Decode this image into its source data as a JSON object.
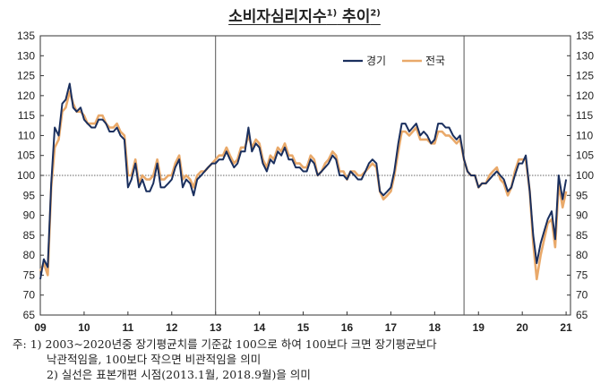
{
  "title": {
    "text": "소비자심리지수",
    "sup1": "1)",
    "text2": " 추이",
    "sup2": "2)"
  },
  "notes": {
    "label": "주:",
    "line1": "1) 2003~2020년중 장기평균치를 기준값 100으로 하여 100보다 크면 장기평균보다",
    "line2": "낙관적임을, 100보다 작으면 비관적임을 의미",
    "line3": "2) 실선은 표본개편 시점(2013.1월, 2018.9월)을 의미"
  },
  "colors": {
    "경기": "#1a2f5e",
    "전국": "#e9a96a",
    "vline": "#555555"
  },
  "chart_data": {
    "type": "line",
    "xlabel": "",
    "ylabel": "",
    "ylim": [
      65,
      135
    ],
    "yticks": [
      65,
      70,
      75,
      80,
      85,
      90,
      95,
      100,
      105,
      110,
      115,
      120,
      125,
      130,
      135
    ],
    "x_tick_labels": [
      "09",
      "10",
      "11",
      "12",
      "13",
      "14",
      "15",
      "16",
      "17",
      "18",
      "19",
      "20",
      "21"
    ],
    "x_range": [
      2009,
      2021.1
    ],
    "reference_line": 100,
    "vertical_lines": [
      2013,
      2018.67
    ],
    "legend": "top-right",
    "series": [
      {
        "name": "경기",
        "x": [
          2009.0,
          2009.08,
          2009.17,
          2009.25,
          2009.33,
          2009.42,
          2009.5,
          2009.58,
          2009.67,
          2009.75,
          2009.83,
          2009.92,
          2010.0,
          2010.08,
          2010.17,
          2010.25,
          2010.33,
          2010.42,
          2010.5,
          2010.58,
          2010.67,
          2010.75,
          2010.83,
          2010.92,
          2011.0,
          2011.08,
          2011.17,
          2011.25,
          2011.33,
          2011.42,
          2011.5,
          2011.58,
          2011.67,
          2011.75,
          2011.83,
          2011.92,
          2012.0,
          2012.08,
          2012.17,
          2012.25,
          2012.33,
          2012.42,
          2012.5,
          2012.58,
          2012.67,
          2012.75,
          2012.83,
          2012.92,
          2013.0,
          2013.08,
          2013.17,
          2013.25,
          2013.33,
          2013.42,
          2013.5,
          2013.58,
          2013.67,
          2013.75,
          2013.83,
          2013.92,
          2014.0,
          2014.08,
          2014.17,
          2014.25,
          2014.33,
          2014.42,
          2014.5,
          2014.58,
          2014.67,
          2014.75,
          2014.83,
          2014.92,
          2015.0,
          2015.08,
          2015.17,
          2015.25,
          2015.33,
          2015.42,
          2015.5,
          2015.58,
          2015.67,
          2015.75,
          2015.83,
          2015.92,
          2016.0,
          2016.08,
          2016.17,
          2016.25,
          2016.33,
          2016.42,
          2016.5,
          2016.58,
          2016.67,
          2016.75,
          2016.83,
          2016.92,
          2017.0,
          2017.08,
          2017.17,
          2017.25,
          2017.33,
          2017.42,
          2017.5,
          2017.58,
          2017.67,
          2017.75,
          2017.83,
          2017.92,
          2018.0,
          2018.08,
          2018.17,
          2018.25,
          2018.33,
          2018.42,
          2018.5,
          2018.58,
          2018.67,
          2018.75,
          2018.83,
          2018.92,
          2019.0,
          2019.08,
          2019.17,
          2019.25,
          2019.33,
          2019.42,
          2019.5,
          2019.58,
          2019.67,
          2019.75,
          2019.83,
          2019.92,
          2020.0,
          2020.08,
          2020.17,
          2020.25,
          2020.33,
          2020.42,
          2020.5,
          2020.58,
          2020.67,
          2020.75,
          2020.83,
          2020.92,
          2021.0
        ],
        "values": [
          74,
          79,
          77,
          98,
          112,
          110,
          118,
          119,
          123,
          117,
          116,
          117,
          114,
          113,
          112,
          112,
          114,
          114,
          113,
          111,
          111,
          112,
          110,
          109,
          97,
          99,
          103,
          97,
          99,
          96,
          96,
          98,
          103,
          97,
          97,
          98,
          99,
          102,
          104,
          97,
          99,
          98,
          95,
          99,
          100,
          101,
          102,
          103,
          103,
          104,
          104,
          106,
          104,
          102,
          103,
          106,
          106,
          112,
          106,
          108,
          107,
          103,
          101,
          104,
          103,
          106,
          105,
          107,
          104,
          104,
          102,
          102,
          101,
          101,
          104,
          103,
          100,
          101,
          102,
          103,
          105,
          104,
          100,
          100,
          99,
          101,
          100,
          99,
          99,
          101,
          103,
          104,
          103,
          96,
          95,
          96,
          97,
          101,
          108,
          113,
          113,
          111,
          112,
          113,
          110,
          111,
          110,
          108,
          109,
          113,
          113,
          112,
          112,
          110,
          109,
          110,
          104,
          101,
          100,
          100,
          97,
          98,
          98,
          99,
          100,
          101,
          100,
          99,
          96,
          97,
          100,
          103,
          103,
          105,
          96,
          85,
          78,
          83,
          86,
          89,
          91,
          84,
          100,
          94,
          99
        ]
      },
      {
        "name": "전국",
        "x": [
          2009.0,
          2009.08,
          2009.17,
          2009.25,
          2009.33,
          2009.42,
          2009.5,
          2009.58,
          2009.67,
          2009.75,
          2009.83,
          2009.92,
          2010.0,
          2010.08,
          2010.17,
          2010.25,
          2010.33,
          2010.42,
          2010.5,
          2010.58,
          2010.67,
          2010.75,
          2010.83,
          2010.92,
          2011.0,
          2011.08,
          2011.17,
          2011.25,
          2011.33,
          2011.42,
          2011.5,
          2011.58,
          2011.67,
          2011.75,
          2011.83,
          2011.92,
          2012.0,
          2012.08,
          2012.17,
          2012.25,
          2012.33,
          2012.42,
          2012.5,
          2012.58,
          2012.67,
          2012.75,
          2012.83,
          2012.92,
          2013.0,
          2013.08,
          2013.17,
          2013.25,
          2013.33,
          2013.42,
          2013.5,
          2013.58,
          2013.67,
          2013.75,
          2013.83,
          2013.92,
          2014.0,
          2014.08,
          2014.17,
          2014.25,
          2014.33,
          2014.42,
          2014.5,
          2014.58,
          2014.67,
          2014.75,
          2014.83,
          2014.92,
          2015.0,
          2015.08,
          2015.17,
          2015.25,
          2015.33,
          2015.42,
          2015.5,
          2015.58,
          2015.67,
          2015.75,
          2015.83,
          2015.92,
          2016.0,
          2016.08,
          2016.17,
          2016.25,
          2016.33,
          2016.42,
          2016.5,
          2016.58,
          2016.67,
          2016.75,
          2016.83,
          2016.92,
          2017.0,
          2017.08,
          2017.17,
          2017.25,
          2017.33,
          2017.42,
          2017.5,
          2017.58,
          2017.67,
          2017.75,
          2017.83,
          2017.92,
          2018.0,
          2018.08,
          2018.17,
          2018.25,
          2018.33,
          2018.42,
          2018.5,
          2018.58,
          2018.67,
          2018.75,
          2018.83,
          2018.92,
          2019.0,
          2019.08,
          2019.17,
          2019.25,
          2019.33,
          2019.42,
          2019.5,
          2019.58,
          2019.67,
          2019.75,
          2019.83,
          2019.92,
          2020.0,
          2020.08,
          2020.17,
          2020.25,
          2020.33,
          2020.42,
          2020.5,
          2020.58,
          2020.67,
          2020.75,
          2020.83,
          2020.92,
          2021.0
        ],
        "values": [
          76,
          78,
          75,
          97,
          107,
          109,
          116,
          117,
          121,
          118,
          116,
          116,
          115,
          113,
          113,
          113,
          115,
          115,
          113,
          112,
          112,
          113,
          111,
          110,
          100,
          100,
          104,
          98,
          100,
          99,
          99,
          100,
          104,
          99,
          99,
          100,
          100,
          103,
          105,
          99,
          100,
          99,
          97,
          100,
          101,
          101,
          102,
          103,
          104,
          105,
          105,
          107,
          105,
          103,
          104,
          107,
          107,
          110,
          107,
          109,
          108,
          104,
          102,
          105,
          104,
          107,
          106,
          108,
          105,
          105,
          103,
          103,
          102,
          102,
          105,
          104,
          100,
          101,
          103,
          104,
          106,
          105,
          101,
          101,
          99,
          101,
          101,
          100,
          100,
          101,
          102,
          103,
          102,
          96,
          94,
          95,
          96,
          100,
          106,
          111,
          111,
          110,
          111,
          112,
          109,
          109,
          109,
          108,
          108,
          111,
          111,
          110,
          110,
          109,
          108,
          109,
          104,
          101,
          100,
          100,
          97,
          98,
          98,
          100,
          101,
          102,
          99,
          98,
          95,
          97,
          101,
          104,
          104,
          104,
          96,
          83,
          74,
          80,
          84,
          88,
          89,
          82,
          98,
          92,
          96
        ]
      }
    ]
  }
}
